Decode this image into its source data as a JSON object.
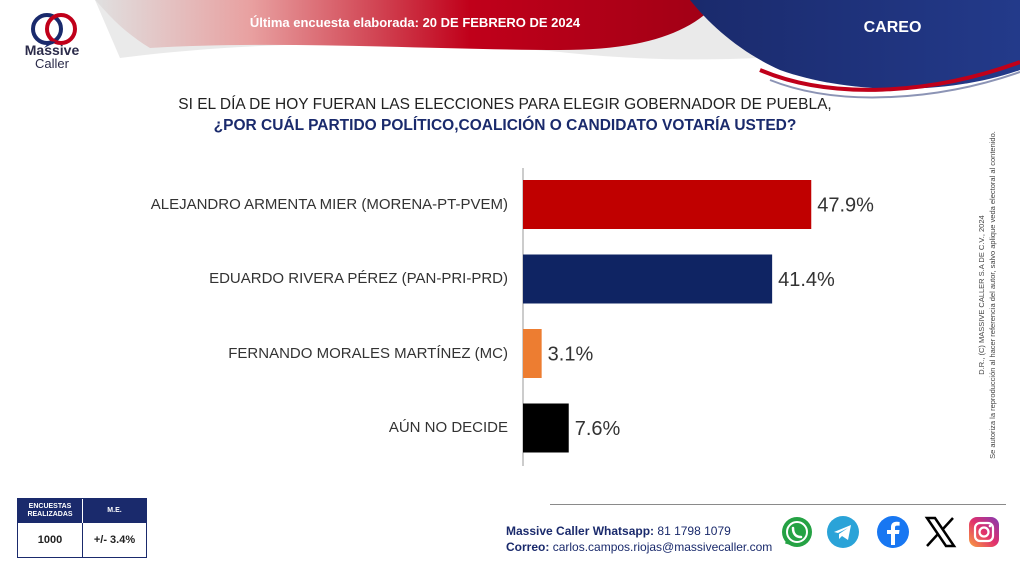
{
  "brand": {
    "line1": "Massive",
    "line2": "Caller"
  },
  "header": {
    "date_text": "Última encuesta elaborada: 20 DE FEBRERO DE 2024",
    "section": "CAREO"
  },
  "question": {
    "line1": "SI EL DÍA DE HOY FUERAN LAS ELECCIONES PARA ELEGIR GOBERNADOR DE PUEBLA,",
    "line2": "¿POR CUÁL PARTIDO POLÍTICO,COALICIÓN  O CANDIDATO VOTARÍA USTED?"
  },
  "legal": {
    "line1": "D.R., (C) MASSIVE CALLER S.A DE C.V., 2024",
    "line2": "Se autoriza la reproducción al hacer referencia del autor, salvo aplique veda electoral al contenido."
  },
  "chart_data": {
    "type": "bar",
    "orientation": "horizontal",
    "categories": [
      "ALEJANDRO ARMENTA MIER (MORENA-PT-PVEM)",
      "EDUARDO RIVERA PÉREZ (PAN-PRI-PRD)",
      "FERNANDO MORALES MARTÍNEZ (MC)",
      "AÚN NO DECIDE"
    ],
    "values": [
      47.9,
      41.4,
      3.1,
      7.6
    ],
    "value_labels": [
      "47.9%",
      "41.4%",
      "3.1%",
      "7.6%"
    ],
    "colors": [
      "#c00000",
      "#0f2463",
      "#ed7d31",
      "#000000"
    ],
    "xlim": [
      0,
      56
    ],
    "grid": false
  },
  "stats": {
    "surveys_label": "ENCUESTAS REALIZADAS",
    "me_label": "M.E.",
    "surveys_value": "1000",
    "me_value": "+/- 3.4%"
  },
  "contact": {
    "whatsapp_label": "Massive Caller Whatsapp:",
    "whatsapp_value": "81 1798 1079",
    "email_label": "Correo:",
    "email_value": "carlos.campos.riojas@massivecaller.com"
  },
  "social_icons": [
    "whatsapp-icon",
    "telegram-icon",
    "facebook-icon",
    "x-icon",
    "instagram-icon"
  ],
  "theme": {
    "red": "#c0001a",
    "navy": "#1a2a6c"
  }
}
